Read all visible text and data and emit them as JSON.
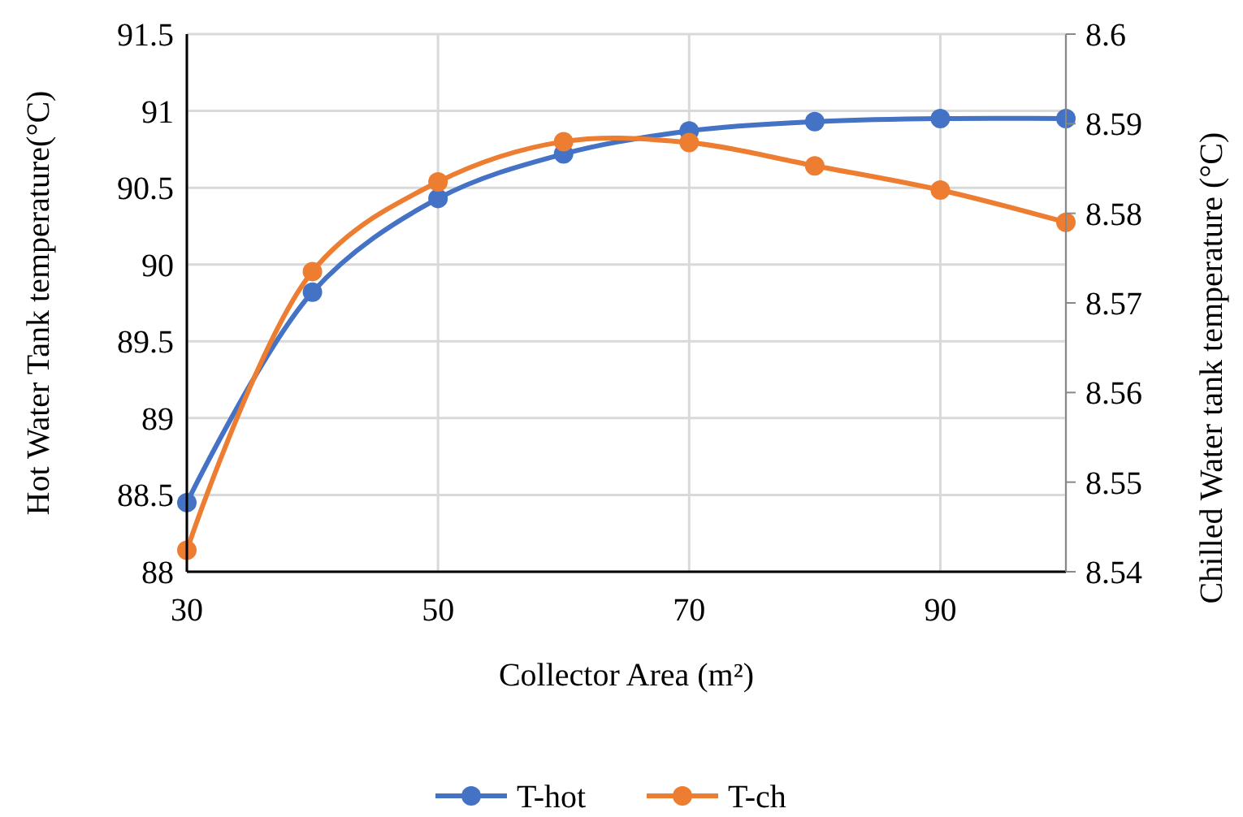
{
  "chart_data": {
    "type": "line",
    "xlabel": "Collector Area (m²)",
    "ylabel": "Hot Water Tank temperature(°C)",
    "y2label": "Chilled Water tank temperature (°C)",
    "x": [
      30,
      40,
      50,
      60,
      70,
      80,
      90,
      100
    ],
    "series": [
      {
        "name": "T-hot",
        "color": "#4472c4",
        "values": [
          88.45,
          89.82,
          90.43,
          90.72,
          90.87,
          90.93,
          90.95,
          90.95
        ]
      },
      {
        "name": "T-ch",
        "color": "#ed7d31",
        "axis": "y2",
        "values": [
          8.5424,
          8.5735,
          8.5835,
          8.588,
          8.5879,
          8.5853,
          8.5826,
          8.579
        ]
      }
    ],
    "xlim": [
      30,
      100
    ],
    "xticks": [
      30,
      50,
      70,
      90
    ],
    "ylim": [
      88,
      91.5
    ],
    "yticks": [
      88,
      88.5,
      89,
      89.5,
      90,
      90.5,
      91,
      91.5
    ],
    "y2lim": [
      8.54,
      8.6
    ],
    "y2ticks": [
      8.54,
      8.55,
      8.56,
      8.57,
      8.58,
      8.59,
      8.6
    ],
    "grid": true,
    "legend": "bottom",
    "marker": "circle",
    "line_style": "solid"
  }
}
